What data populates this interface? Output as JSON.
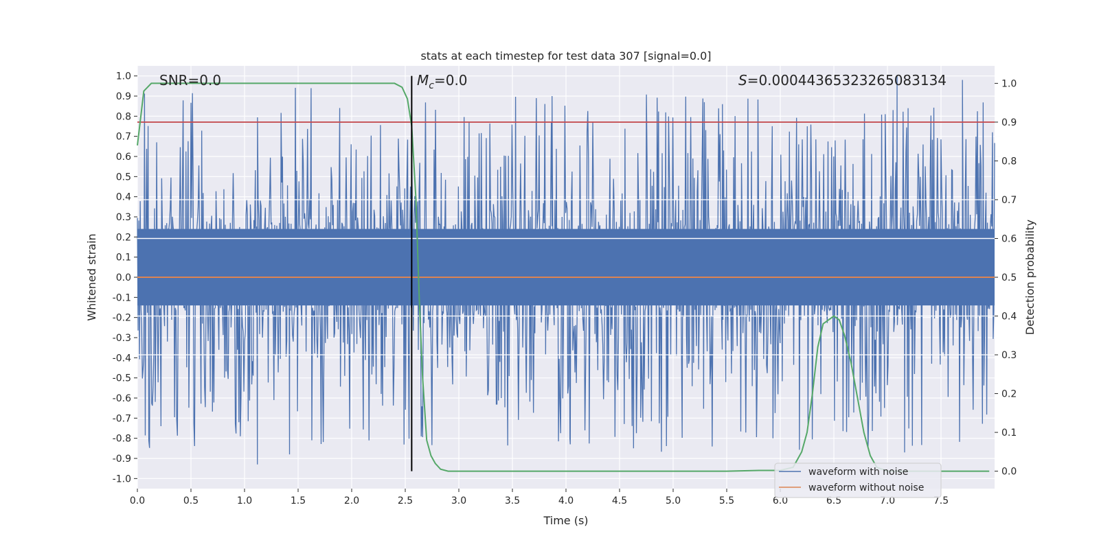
{
  "chart_data": {
    "type": "line",
    "title": "stats at each timestep for test data 307 [signal=0.0]",
    "xlabel": "Time (s)",
    "ylabel_left": "Whitened strain",
    "ylabel_right": "Detection probability",
    "xlim": [
      0.0,
      8.0
    ],
    "ylim_left": [
      -1.05,
      1.05
    ],
    "ylim_right": [
      -0.045,
      1.045
    ],
    "x_ticks": [
      "0.0",
      "0.5",
      "1.0",
      "1.5",
      "2.0",
      "2.5",
      "3.0",
      "3.5",
      "4.0",
      "4.5",
      "5.0",
      "5.5",
      "6.0",
      "6.5",
      "7.0",
      "7.5"
    ],
    "x_tick_values": [
      0.0,
      0.5,
      1.0,
      1.5,
      2.0,
      2.5,
      3.0,
      3.5,
      4.0,
      4.5,
      5.0,
      5.5,
      6.0,
      6.5,
      7.0,
      7.5
    ],
    "y_left_ticks": [
      "1.0",
      "0.9",
      "0.8",
      "0.7",
      "0.6",
      "0.5",
      "0.4",
      "0.3",
      "0.2",
      "0.1",
      "0.0",
      "-0.1",
      "-0.2",
      "-0.3",
      "-0.4",
      "-0.5",
      "-0.6",
      "-0.7",
      "-0.8",
      "-0.9",
      "-1.0"
    ],
    "y_left_tick_values": [
      1.0,
      0.9,
      0.8,
      0.7,
      0.6,
      0.5,
      0.4,
      0.3,
      0.2,
      0.1,
      0.0,
      -0.1,
      -0.2,
      -0.3,
      -0.4,
      -0.5,
      -0.6,
      -0.7,
      -0.8,
      -0.9,
      -1.0
    ],
    "y_right_ticks": [
      "1.0",
      "0.9",
      "0.8",
      "0.7",
      "0.6",
      "0.5",
      "0.4",
      "0.3",
      "0.2",
      "0.1",
      "0.0"
    ],
    "y_right_tick_values": [
      1.0,
      0.9,
      0.8,
      0.7,
      0.6,
      0.5,
      0.4,
      0.3,
      0.2,
      0.1,
      0.0
    ],
    "annotations": {
      "snr": "SNR=0.0",
      "mc_symbol": "M",
      "mc_sub": "c",
      "mc_value": "=0.0",
      "s_symbol": "S",
      "s_value": "=0.00044365323265083134"
    },
    "threshold_right": 0.9,
    "marker_time": 2.56,
    "series": [
      {
        "name": "waveform with noise",
        "axis": "left",
        "color": "#4c72b0",
        "generation": "noise",
        "n_samples": 1200,
        "seed": 307,
        "core_min": -0.14,
        "core_max": 0.24,
        "spike_max": 1.0,
        "spike_min": -0.93,
        "peaks": [
          [
            3.87,
            0.9
          ],
          [
            7.09,
            1.0
          ],
          [
            7.7,
            0.98
          ],
          [
            5.46,
            0.86
          ],
          [
            1.12,
            -0.93
          ],
          [
            7.16,
            -0.87
          ],
          [
            1.42,
            -0.88
          ],
          [
            4.04,
            -0.83
          ]
        ]
      },
      {
        "name": "waveform without noise",
        "axis": "left",
        "color": "#dd8452",
        "x": [
          0.0,
          8.0
        ],
        "y": [
          0.0,
          0.0
        ]
      },
      {
        "name": "detection probability",
        "axis": "right",
        "color": "#55a868",
        "x": [
          0.0,
          0.06,
          0.13,
          0.5,
          1.0,
          1.5,
          2.0,
          2.3,
          2.4,
          2.47,
          2.52,
          2.56,
          2.6,
          2.63,
          2.66,
          2.7,
          2.74,
          2.78,
          2.83,
          2.9,
          3.2,
          4.0,
          5.0,
          5.5,
          5.8,
          6.0,
          6.12,
          6.2,
          6.25,
          6.3,
          6.35,
          6.4,
          6.45,
          6.5,
          6.55,
          6.6,
          6.66,
          6.72,
          6.78,
          6.84,
          6.9,
          7.0,
          7.5,
          7.95
        ],
        "y": [
          0.84,
          0.98,
          1.0,
          1.0,
          1.0,
          1.0,
          1.0,
          1.0,
          1.0,
          0.99,
          0.96,
          0.89,
          0.7,
          0.45,
          0.25,
          0.08,
          0.04,
          0.02,
          0.005,
          0.0,
          0.0,
          0.0,
          0.0,
          0.0,
          0.002,
          0.002,
          0.01,
          0.05,
          0.1,
          0.2,
          0.32,
          0.38,
          0.39,
          0.4,
          0.39,
          0.35,
          0.28,
          0.19,
          0.1,
          0.04,
          0.01,
          0.0,
          0.0,
          0.0
        ]
      }
    ],
    "legend": {
      "position": "lower-right",
      "entries": [
        {
          "label": "waveform with noise",
          "color": "#4c72b0"
        },
        {
          "label": "waveform without noise",
          "color": "#dd8452"
        }
      ]
    },
    "colors": {
      "background": "#eaeaf2",
      "grid": "#ffffff",
      "threshold": "#c44e52",
      "marker": "#000000"
    }
  }
}
